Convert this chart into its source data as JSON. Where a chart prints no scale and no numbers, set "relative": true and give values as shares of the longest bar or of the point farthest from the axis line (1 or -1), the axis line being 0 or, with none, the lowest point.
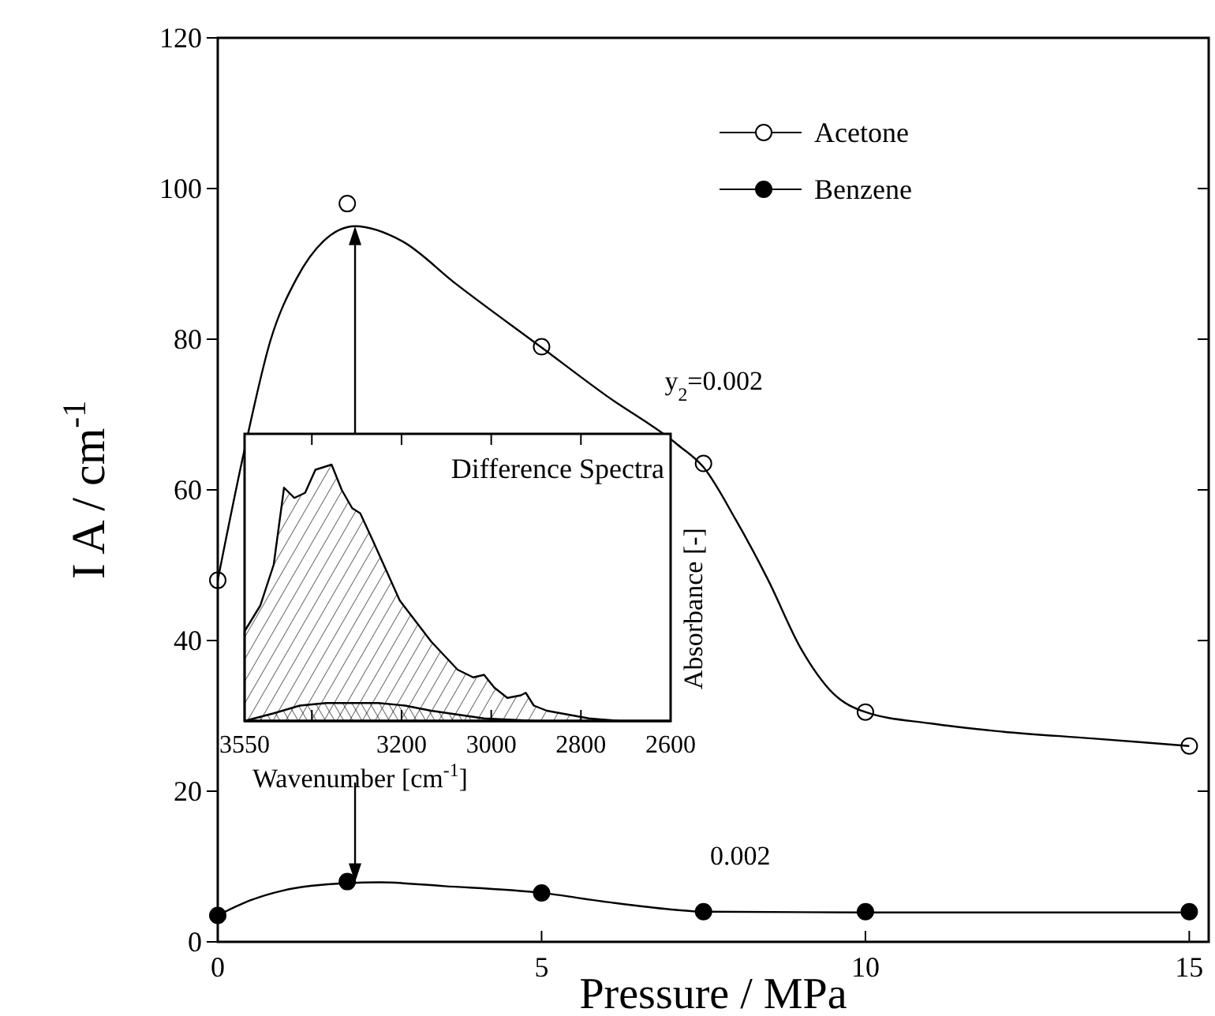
{
  "chart_data": [
    {
      "type": "scatter",
      "xlabel": "Pressure  / MPa",
      "ylabel": "I A / cm$^{-1}$",
      "xlim": [
        0,
        15.3
      ],
      "ylim": [
        0,
        120
      ],
      "xticks": [
        0,
        5,
        10,
        15
      ],
      "yticks": [
        0,
        20,
        40,
        60,
        80,
        100,
        120
      ],
      "legend": "top right",
      "grid": false,
      "series": [
        {
          "name": "Acetone",
          "marker": "circle",
          "color": "#ffffff",
          "x": [
            0,
            2,
            5,
            7.5,
            10,
            15
          ],
          "values": [
            48,
            98,
            79,
            63.5,
            30.5,
            26
          ]
        },
        {
          "name": "Benzene",
          "marker": "circle",
          "color": "#000000",
          "x": [
            0,
            2,
            5,
            7.5,
            10,
            15
          ],
          "values": [
            3.5,
            8,
            6.5,
            4,
            4,
            4
          ]
        },
        {
          "type": "line",
          "color": "#000000",
          "x": [
            0,
            0.41,
            0.82,
            1.22,
            1.63,
            2.12,
            2.85,
            3.67,
            5,
            6,
            7.1,
            7.5,
            8,
            8.5,
            9,
            9.5,
            10,
            11,
            12,
            13.5,
            15
          ],
          "values": [
            48,
            65.2,
            80,
            88.1,
            93,
            95,
            93,
            87.4,
            78.9,
            72.5,
            66,
            63,
            56,
            48,
            39,
            33,
            30.5,
            29,
            28,
            27,
            26
          ]
        },
        {
          "type": "line",
          "color": "#000000",
          "x": [
            0,
            0.5,
            1,
            2,
            2.5,
            3.5,
            5,
            6,
            7,
            7.5,
            10,
            15
          ],
          "values": [
            3.5,
            5.5,
            6.8,
            7.8,
            7.9,
            7.4,
            6.5,
            5.3,
            4.3,
            4,
            3.9,
            3.9
          ]
        }
      ],
      "annotations": [
        {
          "text": "y$_{2}$=0.002",
          "x": 6.9,
          "y": 67
        },
        {
          "text": "0.002",
          "x": 7.6,
          "y": 4
        }
      ]
    },
    {
      "type": "area",
      "relative": true,
      "xlabel": "Wavenumber [cm$^{-1}$]",
      "ylabel": "Absorbance [-]",
      "xlim": [
        3550,
        2600
      ],
      "xticks": [
        3550,
        {
          "value": 3400,
          "label": null
        },
        3200,
        3000,
        2800,
        2600
      ],
      "tick_labels": "x",
      "series": [
        {
          "color": "#000000",
          "x": [
            3550,
            3515,
            3485,
            3462,
            3439,
            3415,
            3392,
            3374,
            3356,
            3333,
            3310,
            3292,
            3263,
            3204,
            3134,
            3075,
            3040,
            3016,
            2993,
            2964,
            2934,
            2923,
            2905,
            2876,
            2782,
            2712,
            2600
          ],
          "values": [
            0.35,
            0.45,
            0.61,
            0.91,
            0.87,
            0.89,
            0.98,
            0.99,
            1,
            0.9,
            0.83,
            0.81,
            0.7,
            0.47,
            0.31,
            0.2,
            0.17,
            0.18,
            0.13,
            0.09,
            0.1,
            0.11,
            0.06,
            0.04,
            0.01,
            0,
            0
          ]
        },
        {
          "color": "#000000",
          "x": [
            3550,
            3485,
            3427,
            3368,
            3310,
            3251,
            3192,
            3134,
            3016,
            2899,
            2600
          ],
          "values": [
            0,
            0.03,
            0.06,
            0.07,
            0.07,
            0.07,
            0.06,
            0.04,
            0.01,
            0,
            0
          ]
        }
      ],
      "annotations": [
        "Difference Spectra"
      ]
    }
  ]
}
